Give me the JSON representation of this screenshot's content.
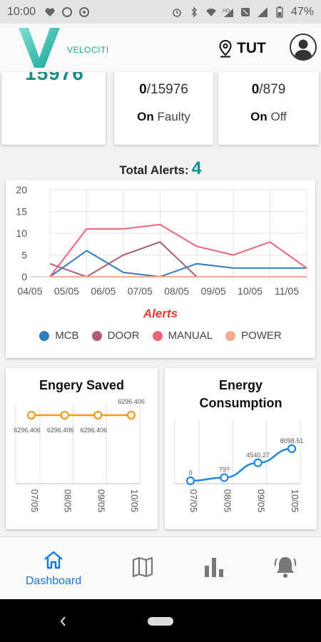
{
  "status_bar": {
    "time": "10:00",
    "battery": "47%",
    "icons_left": [
      "heart-icon",
      "circle-icon",
      "c-circle-icon"
    ],
    "icons_right": [
      "alarm-icon",
      "bluetooth-icon",
      "wifi-icon",
      "hd-signal-icon",
      "mute-icon",
      "signal-icon",
      "battery-icon"
    ]
  },
  "header": {
    "brand": "VELOCITI",
    "location": "TUT",
    "accent": "#1aa79a"
  },
  "stats": {
    "total_value": "15976",
    "faulty_count": "0",
    "faulty_total": "/15976",
    "faulty_on": "On",
    "faulty_label": "Faulty",
    "off_count": "0",
    "off_total": "/879",
    "off_on": "On",
    "off_label": "Off"
  },
  "alerts": {
    "label": "Total Alerts:",
    "count": "4",
    "chart_title": "Alerts"
  },
  "chart_data": [
    {
      "type": "line",
      "title": "Alerts",
      "categories": [
        "04/05",
        "05/05",
        "06/05",
        "07/05",
        "08/05",
        "09/05",
        "10/05",
        "11/05"
      ],
      "ylim": [
        0,
        20
      ],
      "yticks": [
        0,
        5,
        10,
        15,
        20
      ],
      "grid": true,
      "legend": "bottom",
      "series": [
        {
          "name": "MCB",
          "color": "#2e7dbd",
          "values": [
            0,
            6,
            1,
            0,
            3,
            2,
            2,
            2
          ]
        },
        {
          "name": "DOOR",
          "color": "#b05a7a",
          "values": [
            3,
            0,
            5,
            8,
            0,
            null,
            null,
            null
          ]
        },
        {
          "name": "MANUAL",
          "color": "#f06277",
          "values": [
            0,
            11,
            11,
            12,
            7,
            5,
            8,
            2
          ]
        },
        {
          "name": "POWER",
          "color": "#f5a98e",
          "values": [
            0,
            0,
            0,
            0,
            0,
            0,
            0,
            0
          ]
        }
      ]
    },
    {
      "type": "line",
      "title": "Engery Saved",
      "categories": [
        "07/05",
        "08/05",
        "09/05",
        "10/05"
      ],
      "series": [
        {
          "color": "#f39c12",
          "values": [
            6296.406,
            6296.406,
            6296.406,
            6296.406
          ]
        }
      ],
      "labels": [
        "6296.406",
        "6296.406",
        "6296.406",
        "6296.406"
      ]
    },
    {
      "type": "line",
      "title": "Energy Consumption",
      "categories": [
        "07/05",
        "08/05",
        "09/05",
        "10/05"
      ],
      "series": [
        {
          "color": "#1e88e5",
          "values": [
            0,
            796,
            4540.27,
            8098.51
          ]
        }
      ],
      "labels": [
        "0",
        "79?",
        "4540.27",
        "8098.51"
      ]
    }
  ],
  "energy_saved": {
    "title": "Engery Saved"
  },
  "energy_consumption": {
    "title_line1": "Energy",
    "title_line2": "Consumption"
  },
  "bottom_nav": {
    "dashboard_label": "Dashboard",
    "active_color": "#1976d2"
  }
}
